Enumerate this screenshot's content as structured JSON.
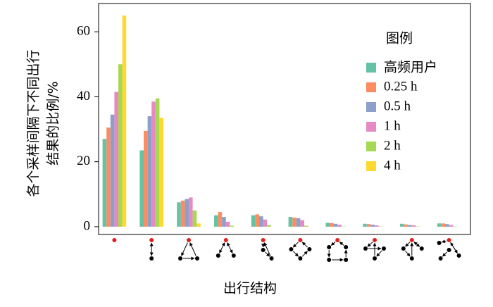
{
  "chart_data": {
    "type": "bar",
    "ylabel": [
      "各个采样间隔下不同出行",
      "结果的比例/%"
    ],
    "xlabel": "出行结构",
    "legend_title": "图例",
    "legend": "upper right",
    "categories": [
      null,
      null,
      null,
      null,
      null,
      null,
      null,
      null,
      null,
      null
    ],
    "series": [
      {
        "name": "高频用户",
        "color": "#66c2a5",
        "values": [
          27,
          23.5,
          7.5,
          3.5,
          3.5,
          3,
          1.2,
          0.9,
          0.9,
          1
        ]
      },
      {
        "name": "0.25 h",
        "color": "#fc8d62",
        "values": [
          30.5,
          29.5,
          8,
          4.5,
          3.8,
          2.8,
          1.1,
          0.8,
          0.7,
          1
        ]
      },
      {
        "name": "0.5 h",
        "color": "#8da0cb",
        "values": [
          34.5,
          34,
          8.5,
          3,
          3.2,
          2.6,
          0.9,
          0.6,
          0.5,
          0.8
        ]
      },
      {
        "name": "1 h",
        "color": "#e78ac3",
        "values": [
          41.5,
          38.5,
          9,
          1.5,
          2.2,
          2,
          0.6,
          0.4,
          0.4,
          0.5
        ]
      },
      {
        "name": "2 h",
        "color": "#a6d854",
        "values": [
          50,
          39.5,
          5,
          0.3,
          0.5,
          0.3,
          0.1,
          0.1,
          0.1,
          0.1
        ]
      },
      {
        "name": "4 h",
        "color": "#ffd92f",
        "values": [
          65,
          33.5,
          1,
          0,
          0,
          0,
          0,
          0,
          0,
          0
        ]
      }
    ],
    "ylim": [
      -2.4,
      68.7
    ],
    "yticks": [
      0,
      20,
      40,
      60
    ]
  }
}
